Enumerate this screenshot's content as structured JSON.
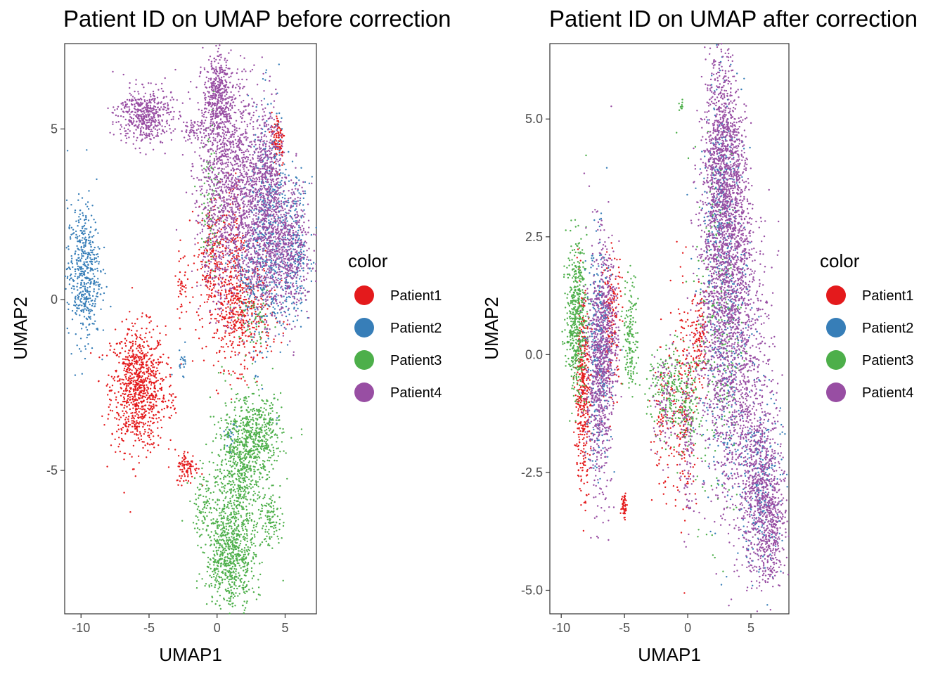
{
  "chart_data": [
    {
      "type": "scatter",
      "title": "Patient ID on UMAP before correction",
      "xlabel": "UMAP1",
      "ylabel": "UMAP2",
      "xlim": [
        -11.2,
        7.3
      ],
      "ylim": [
        -9.2,
        7.5
      ],
      "xticks": [
        -10,
        -5,
        0,
        5
      ],
      "xtick_labels": [
        "-10",
        "-5",
        "0",
        "5"
      ],
      "yticks": [
        5,
        0,
        -5
      ],
      "ytick_labels": [
        "5",
        "0",
        "-5"
      ],
      "legend": {
        "title": "color",
        "entries": [
          "Patient1",
          "Patient2",
          "Patient3",
          "Patient4"
        ],
        "position": "right"
      },
      "series": [
        {
          "name": "Patient1",
          "color": "#E41A1C",
          "clusters": [
            {
              "cx": -5.8,
              "cy": -2.6,
              "sx": 1.0,
              "sy": 0.9,
              "n": 900
            },
            {
              "cx": 1.6,
              "cy": -0.4,
              "sx": 1.2,
              "sy": 0.8,
              "n": 500
            },
            {
              "cx": -0.5,
              "cy": 1.3,
              "sx": 0.5,
              "sy": 0.8,
              "n": 180
            },
            {
              "cx": 1.2,
              "cy": 1.8,
              "sx": 0.4,
              "sy": 0.9,
              "n": 100
            },
            {
              "cx": 4.5,
              "cy": 4.7,
              "sx": 0.25,
              "sy": 0.4,
              "n": 90
            },
            {
              "cx": -2.2,
              "cy": -4.9,
              "sx": 0.4,
              "sy": 0.25,
              "n": 90
            },
            {
              "cx": -2.6,
              "cy": 0.5,
              "sx": 0.2,
              "sy": 0.5,
              "n": 40
            },
            {
              "cx": -3.5,
              "cy": -3.0,
              "sx": 0.3,
              "sy": 0.3,
              "n": 20
            }
          ]
        },
        {
          "name": "Patient2",
          "color": "#377EB8",
          "clusters": [
            {
              "cx": -9.8,
              "cy": 0.8,
              "sx": 0.6,
              "sy": 1.0,
              "n": 500
            },
            {
              "cx": 3.9,
              "cy": 2.0,
              "sx": 0.8,
              "sy": 1.8,
              "n": 500
            },
            {
              "cx": 5.8,
              "cy": 1.5,
              "sx": 0.5,
              "sy": 1.0,
              "n": 200
            },
            {
              "cx": 1.0,
              "cy": -4.0,
              "sx": 0.2,
              "sy": 0.2,
              "n": 20
            },
            {
              "cx": -2.6,
              "cy": -1.8,
              "sx": 0.3,
              "sy": 0.2,
              "n": 20
            },
            {
              "cx": 2.5,
              "cy": 0.8,
              "sx": 0.8,
              "sy": 0.6,
              "n": 100
            }
          ]
        },
        {
          "name": "Patient3",
          "color": "#4DAF4A",
          "clusters": [
            {
              "cx": 1.0,
              "cy": -7.5,
              "sx": 0.9,
              "sy": 0.8,
              "n": 700
            },
            {
              "cx": 1.6,
              "cy": -5.0,
              "sx": 1.0,
              "sy": 1.0,
              "n": 600
            },
            {
              "cx": 3.0,
              "cy": -4.0,
              "sx": 0.9,
              "sy": 0.6,
              "n": 400
            },
            {
              "cx": 4.0,
              "cy": -6.4,
              "sx": 0.4,
              "sy": 0.4,
              "n": 100
            },
            {
              "cx": -0.4,
              "cy": 3.0,
              "sx": 0.4,
              "sy": 1.2,
              "n": 100
            },
            {
              "cx": 2.8,
              "cy": -0.7,
              "sx": 0.6,
              "sy": 0.4,
              "n": 60
            },
            {
              "cx": -1.0,
              "cy": -6.0,
              "sx": 0.5,
              "sy": 0.5,
              "n": 80
            }
          ]
        },
        {
          "name": "Patient4",
          "color": "#984EA3",
          "clusters": [
            {
              "cx": -5.3,
              "cy": 5.4,
              "sx": 1.0,
              "sy": 0.4,
              "n": 500
            },
            {
              "cx": 0.0,
              "cy": 6.0,
              "sx": 0.5,
              "sy": 0.6,
              "n": 400
            },
            {
              "cx": 1.0,
              "cy": 4.0,
              "sx": 1.2,
              "sy": 1.3,
              "n": 900
            },
            {
              "cx": 2.6,
              "cy": 2.0,
              "sx": 1.0,
              "sy": 1.2,
              "n": 600
            },
            {
              "cx": 5.0,
              "cy": 1.5,
              "sx": 1.0,
              "sy": 1.0,
              "n": 700
            },
            {
              "cx": 3.8,
              "cy": 3.8,
              "sx": 0.5,
              "sy": 1.0,
              "n": 300
            },
            {
              "cx": 0.2,
              "cy": 1.5,
              "sx": 0.8,
              "sy": 1.0,
              "n": 250
            },
            {
              "cx": -1.5,
              "cy": 5.0,
              "sx": 0.6,
              "sy": 0.15,
              "n": 60
            }
          ]
        }
      ]
    },
    {
      "type": "scatter",
      "title": "Patient ID on UMAP after correction",
      "xlabel": "UMAP1",
      "ylabel": "UMAP2",
      "xlim": [
        -10.9,
        8.0
      ],
      "ylim": [
        -5.5,
        6.6
      ],
      "xticks": [
        -10,
        -5,
        0,
        5
      ],
      "xtick_labels": [
        "-10",
        "-5",
        "0",
        "5"
      ],
      "yticks": [
        5.0,
        2.5,
        0.0,
        -2.5,
        -5.0
      ],
      "ytick_labels": [
        "5.0",
        "2.5",
        "0.0",
        "-2.5",
        "-5.0"
      ],
      "legend": {
        "title": "color",
        "entries": [
          "Patient1",
          "Patient2",
          "Patient3",
          "Patient4"
        ],
        "position": "right"
      },
      "series": [
        {
          "name": "Patient1",
          "color": "#E41A1C",
          "clusters": [
            {
              "cx": -8.3,
              "cy": -0.8,
              "sx": 0.3,
              "sy": 1.0,
              "n": 400
            },
            {
              "cx": -6.0,
              "cy": 0.8,
              "sx": 0.4,
              "sy": 0.7,
              "n": 150
            },
            {
              "cx": -5.0,
              "cy": -3.2,
              "sx": 0.12,
              "sy": 0.15,
              "n": 50
            },
            {
              "cx": -0.3,
              "cy": -1.0,
              "sx": 0.5,
              "sy": 1.2,
              "n": 200
            },
            {
              "cx": 0.9,
              "cy": 0.3,
              "sx": 0.3,
              "sy": 0.5,
              "n": 120
            },
            {
              "cx": -2.0,
              "cy": -1.5,
              "sx": 0.4,
              "sy": 0.8,
              "n": 80
            }
          ]
        },
        {
          "name": "Patient2",
          "color": "#377EB8",
          "clusters": [
            {
              "cx": -7.0,
              "cy": 0.0,
              "sx": 0.5,
              "sy": 1.2,
              "n": 300
            },
            {
              "cx": 3.0,
              "cy": 1.0,
              "sx": 1.0,
              "sy": 2.0,
              "n": 400
            },
            {
              "cx": 5.8,
              "cy": -2.8,
              "sx": 0.8,
              "sy": 1.0,
              "n": 250
            },
            {
              "cx": 2.5,
              "cy": 3.5,
              "sx": 0.5,
              "sy": 1.2,
              "n": 150
            }
          ]
        },
        {
          "name": "Patient3",
          "color": "#4DAF4A",
          "clusters": [
            {
              "cx": -8.8,
              "cy": 0.8,
              "sx": 0.4,
              "sy": 0.8,
              "n": 500
            },
            {
              "cx": -4.5,
              "cy": 0.4,
              "sx": 0.3,
              "sy": 0.6,
              "n": 150
            },
            {
              "cx": -1.5,
              "cy": -0.8,
              "sx": 0.8,
              "sy": 0.5,
              "n": 200
            },
            {
              "cx": 0.0,
              "cy": -1.2,
              "sx": 0.4,
              "sy": 0.5,
              "n": 100
            },
            {
              "cx": -0.5,
              "cy": 5.3,
              "sx": 0.1,
              "sy": 0.08,
              "n": 10
            },
            {
              "cx": 2.5,
              "cy": 0.5,
              "sx": 1.0,
              "sy": 2.0,
              "n": 250
            }
          ]
        },
        {
          "name": "Patient4",
          "color": "#984EA3",
          "clusters": [
            {
              "cx": 2.8,
              "cy": 4.2,
              "sx": 0.7,
              "sy": 1.1,
              "n": 900
            },
            {
              "cx": 2.5,
              "cy": 1.5,
              "sx": 0.9,
              "sy": 1.8,
              "n": 1000
            },
            {
              "cx": 4.2,
              "cy": -0.3,
              "sx": 1.2,
              "sy": 1.8,
              "n": 900
            },
            {
              "cx": 5.8,
              "cy": -2.8,
              "sx": 0.9,
              "sy": 0.9,
              "n": 600
            },
            {
              "cx": 6.5,
              "cy": -3.7,
              "sx": 0.6,
              "sy": 0.6,
              "n": 300
            },
            {
              "cx": -7.0,
              "cy": -0.3,
              "sx": 0.5,
              "sy": 1.3,
              "n": 700
            },
            {
              "cx": -6.2,
              "cy": 0.5,
              "sx": 0.4,
              "sy": 0.8,
              "n": 250
            },
            {
              "cx": -1.8,
              "cy": -1.0,
              "sx": 0.5,
              "sy": 0.6,
              "n": 100
            },
            {
              "cx": 0.0,
              "cy": -2.0,
              "sx": 0.3,
              "sy": 1.0,
              "n": 120
            },
            {
              "cx": 4.0,
              "cy": 2.5,
              "sx": 0.5,
              "sy": 1.2,
              "n": 300
            }
          ]
        }
      ]
    }
  ]
}
